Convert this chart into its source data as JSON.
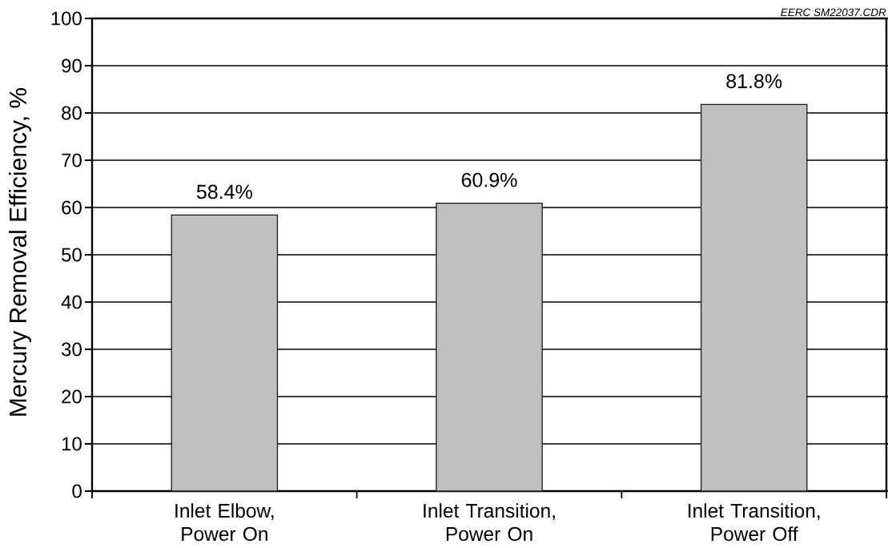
{
  "chart_data": {
    "type": "bar",
    "ylabel": "Mercury Removal Efficiency, %",
    "annotations": [
      "EERC SM22037.CDR"
    ],
    "categories": [
      "Inlet Elbow, Power On",
      "Inlet Transition, Power On",
      "Inlet Transition, Power Off"
    ],
    "values": [
      58.4,
      60.9,
      81.8
    ],
    "value_labels": [
      "58.4%",
      "60.9%",
      "81.8%"
    ],
    "color": "#c0c0c0",
    "ylim": [
      0,
      100
    ],
    "yticks": [
      0,
      10,
      20,
      30,
      40,
      50,
      60,
      70,
      80,
      90,
      100
    ],
    "grid": "y"
  }
}
